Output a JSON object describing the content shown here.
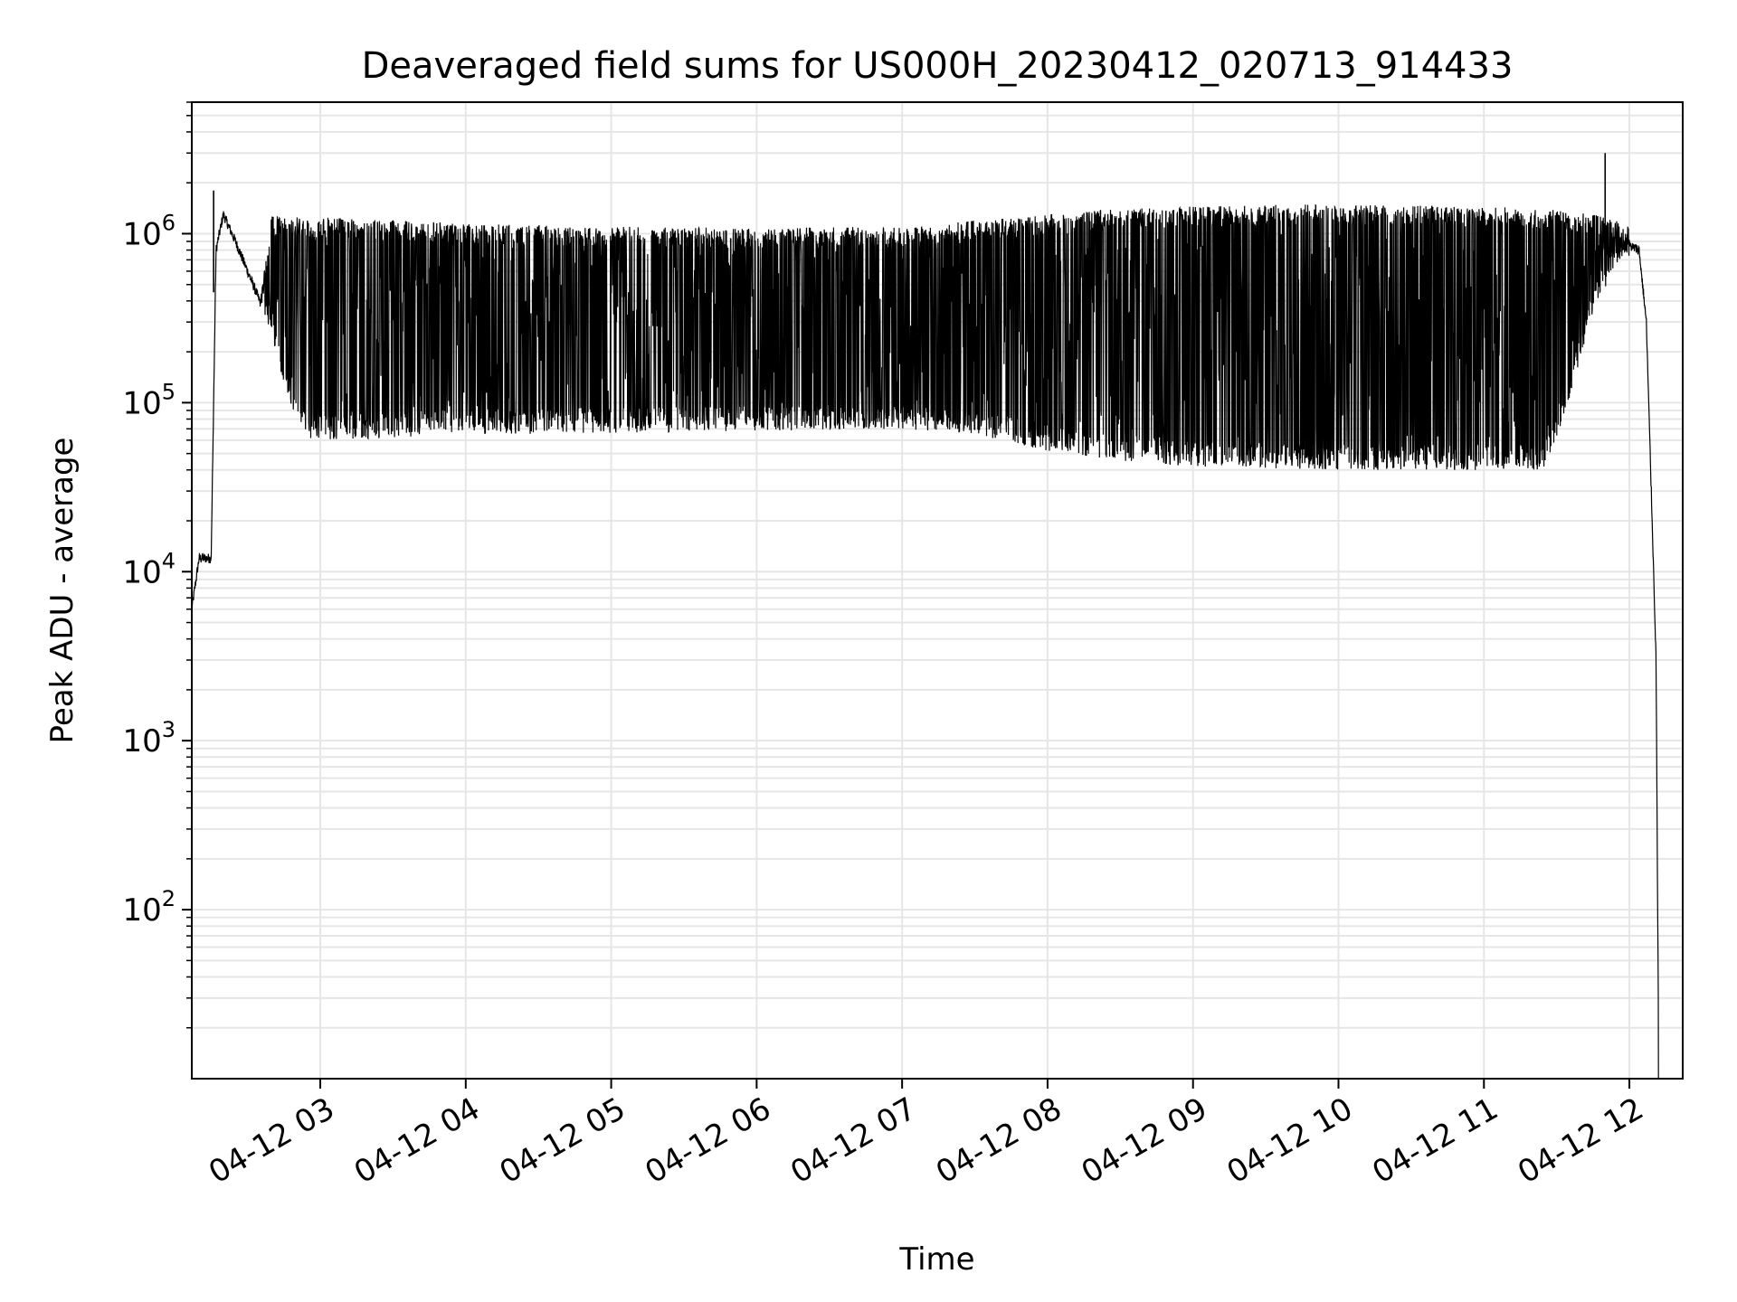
{
  "chart_data": {
    "type": "line",
    "title": "Deaveraged field sums for US000H_20230412_020713_914433",
    "xlabel": "Time",
    "ylabel": "Peak ADU - average",
    "yscale": "log",
    "ylim": [
      10,
      6000000
    ],
    "y_ticks": [
      {
        "value": 100,
        "base": "10",
        "exp": "2"
      },
      {
        "value": 1000,
        "base": "10",
        "exp": "3"
      },
      {
        "value": 10000,
        "base": "10",
        "exp": "4"
      },
      {
        "value": 100000,
        "base": "10",
        "exp": "5"
      },
      {
        "value": 1000000,
        "base": "10",
        "exp": "6"
      }
    ],
    "xlim": [
      "2023-04-12 02:07",
      "2023-04-12 12:22"
    ],
    "x_ticks": [
      {
        "time": "2023-04-12 03:00",
        "label": "04-12 03"
      },
      {
        "time": "2023-04-12 04:00",
        "label": "04-12 04"
      },
      {
        "time": "2023-04-12 05:00",
        "label": "04-12 05"
      },
      {
        "time": "2023-04-12 06:00",
        "label": "04-12 06"
      },
      {
        "time": "2023-04-12 07:00",
        "label": "04-12 07"
      },
      {
        "time": "2023-04-12 08:00",
        "label": "04-12 08"
      },
      {
        "time": "2023-04-12 09:00",
        "label": "04-12 09"
      },
      {
        "time": "2023-04-12 10:00",
        "label": "04-12 10"
      },
      {
        "time": "2023-04-12 11:00",
        "label": "04-12 11"
      },
      {
        "time": "2023-04-12 12:00",
        "label": "04-12 12"
      }
    ],
    "grid": true,
    "legend": "none",
    "series_color": "#000000",
    "series": [
      {
        "x": [
          "2023-04-12 02:07",
          "2023-04-12 02:10",
          "2023-04-12 02:15",
          "2023-04-12 02:17",
          "2023-04-12 02:20",
          "2023-04-12 02:25",
          "2023-04-12 02:30",
          "2023-04-12 02:35",
          "2023-04-12 02:40",
          "2023-04-12 02:45",
          "2023-04-12 02:50",
          "2023-04-12 02:55",
          "2023-04-12 03:00",
          "2023-04-12 03:30",
          "2023-04-12 04:00",
          "2023-04-12 05:00",
          "2023-04-12 06:00",
          "2023-04-12 07:00",
          "2023-04-12 07:30",
          "2023-04-12 08:00",
          "2023-04-12 08:30",
          "2023-04-12 09:00",
          "2023-04-12 10:00",
          "2023-04-12 11:00",
          "2023-04-12 11:25",
          "2023-04-12 11:35",
          "2023-04-12 11:45",
          "2023-04-12 11:55",
          "2023-04-12 12:00",
          "2023-04-12 12:04",
          "2023-04-12 12:07",
          "2023-04-12 12:10",
          "2023-04-12 12:11",
          "2023-04-12 12:12"
        ],
        "low": [
          6000,
          12000,
          12000,
          800000,
          1300000,
          900000,
          600000,
          400000,
          250000,
          130000,
          75000,
          62000,
          60000,
          62000,
          65000,
          66000,
          68000,
          70000,
          65000,
          52000,
          45000,
          42000,
          40000,
          40000,
          40000,
          100000,
          350000,
          650000,
          850000,
          800000,
          300000,
          10000,
          3000,
          20
        ],
        "high": [
          6000,
          12000,
          12000,
          800000,
          1300000,
          900000,
          600000,
          400000,
          1300000,
          1250000,
          1250000,
          1250000,
          1250000,
          1200000,
          1150000,
          1100000,
          1080000,
          1100000,
          1200000,
          1300000,
          1400000,
          1450000,
          1500000,
          1450000,
          1400000,
          1350000,
          1300000,
          1200000,
          950000,
          800000,
          300000,
          10000,
          3000,
          20
        ]
      }
    ],
    "spikes": [
      {
        "time": "2023-04-12 02:16",
        "value": 1800000
      },
      {
        "time": "2023-04-12 11:50",
        "value": 3000000
      }
    ]
  }
}
